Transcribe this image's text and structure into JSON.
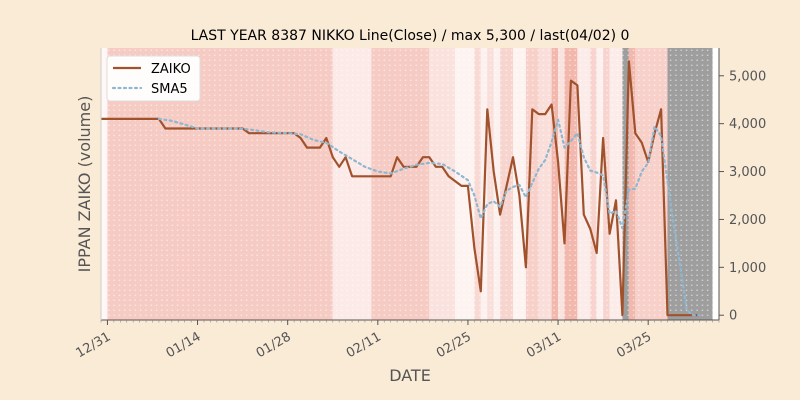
{
  "chart_data": {
    "type": "line",
    "title": "LAST YEAR 8387 NIKKO Line(Close) / max 5,300 / last(04/02) 0",
    "xlabel": "DATE",
    "ylabel": "IPPAN ZAIKO (volume)",
    "xlim": [
      "2018-12-30",
      "2019-04-05"
    ],
    "ylim": [
      -100,
      5580
    ],
    "y_axis_side": "right",
    "y_ticks": [
      0,
      1000,
      2000,
      3000,
      4000,
      5000
    ],
    "x_ticks": [
      {
        "date": "2018-12-31",
        "label": "12/31"
      },
      {
        "date": "2019-01-14",
        "label": "01/14"
      },
      {
        "date": "2019-01-28",
        "label": "01/28"
      },
      {
        "date": "2019-02-11",
        "label": "02/11"
      },
      {
        "date": "2019-02-25",
        "label": "02/25"
      },
      {
        "date": "2019-03-11",
        "label": "03/11"
      },
      {
        "date": "2019-03-25",
        "label": "03/25"
      }
    ],
    "legend_position": "top-left",
    "grid": false,
    "colors": {
      "zaiko": "#a0522d",
      "sma5": "#8fb7d0",
      "background": "#faebd7",
      "grey_band": "#9e9e9e"
    },
    "series": [
      {
        "name": "ZAIKO",
        "style": "solid",
        "points": [
          [
            "2018-12-30",
            4100
          ],
          [
            "2018-12-31",
            4100
          ],
          [
            "2019-01-01",
            4100
          ],
          [
            "2019-01-02",
            4100
          ],
          [
            "2019-01-03",
            4100
          ],
          [
            "2019-01-04",
            4100
          ],
          [
            "2019-01-05",
            4100
          ],
          [
            "2019-01-06",
            4100
          ],
          [
            "2019-01-07",
            4100
          ],
          [
            "2019-01-08",
            4100
          ],
          [
            "2019-01-09",
            3900
          ],
          [
            "2019-01-10",
            3900
          ],
          [
            "2019-01-11",
            3900
          ],
          [
            "2019-01-12",
            3900
          ],
          [
            "2019-01-13",
            3900
          ],
          [
            "2019-01-14",
            3900
          ],
          [
            "2019-01-15",
            3900
          ],
          [
            "2019-01-16",
            3900
          ],
          [
            "2019-01-17",
            3900
          ],
          [
            "2019-01-18",
            3900
          ],
          [
            "2019-01-19",
            3900
          ],
          [
            "2019-01-20",
            3900
          ],
          [
            "2019-01-21",
            3900
          ],
          [
            "2019-01-22",
            3800
          ],
          [
            "2019-01-23",
            3800
          ],
          [
            "2019-01-24",
            3800
          ],
          [
            "2019-01-25",
            3800
          ],
          [
            "2019-01-26",
            3800
          ],
          [
            "2019-01-27",
            3800
          ],
          [
            "2019-01-28",
            3800
          ],
          [
            "2019-01-29",
            3800
          ],
          [
            "2019-01-30",
            3700
          ],
          [
            "2019-01-31",
            3500
          ],
          [
            "2019-02-01",
            3500
          ],
          [
            "2019-02-02",
            3500
          ],
          [
            "2019-02-03",
            3700
          ],
          [
            "2019-02-04",
            3300
          ],
          [
            "2019-02-05",
            3100
          ],
          [
            "2019-02-06",
            3300
          ],
          [
            "2019-02-07",
            2900
          ],
          [
            "2019-02-08",
            2900
          ],
          [
            "2019-02-09",
            2900
          ],
          [
            "2019-02-10",
            2900
          ],
          [
            "2019-02-11",
            2900
          ],
          [
            "2019-02-12",
            2900
          ],
          [
            "2019-02-13",
            2900
          ],
          [
            "2019-02-14",
            3300
          ],
          [
            "2019-02-15",
            3100
          ],
          [
            "2019-02-16",
            3100
          ],
          [
            "2019-02-17",
            3100
          ],
          [
            "2019-02-18",
            3300
          ],
          [
            "2019-02-19",
            3300
          ],
          [
            "2019-02-20",
            3100
          ],
          [
            "2019-02-21",
            3100
          ],
          [
            "2019-02-22",
            2900
          ],
          [
            "2019-02-23",
            2800
          ],
          [
            "2019-02-24",
            2700
          ],
          [
            "2019-02-25",
            2700
          ],
          [
            "2019-02-26",
            1400
          ],
          [
            "2019-02-27",
            500
          ],
          [
            "2019-02-28",
            4300
          ],
          [
            "2019-03-01",
            3000
          ],
          [
            "2019-03-02",
            2100
          ],
          [
            "2019-03-03",
            2700
          ],
          [
            "2019-03-04",
            3300
          ],
          [
            "2019-03-05",
            2500
          ],
          [
            "2019-03-06",
            1000
          ],
          [
            "2019-03-07",
            4300
          ],
          [
            "2019-03-08",
            4200
          ],
          [
            "2019-03-09",
            4200
          ],
          [
            "2019-03-10",
            4400
          ],
          [
            "2019-03-11",
            3200
          ],
          [
            "2019-03-12",
            1500
          ],
          [
            "2019-03-13",
            4900
          ],
          [
            "2019-03-14",
            4800
          ],
          [
            "2019-03-15",
            2100
          ],
          [
            "2019-03-16",
            1800
          ],
          [
            "2019-03-17",
            1300
          ],
          [
            "2019-03-18",
            3700
          ],
          [
            "2019-03-19",
            1700
          ],
          [
            "2019-03-20",
            2400
          ],
          [
            "2019-03-21",
            0
          ],
          [
            "2019-03-22",
            5300
          ],
          [
            "2019-03-23",
            3800
          ],
          [
            "2019-03-24",
            3600
          ],
          [
            "2019-03-25",
            3200
          ],
          [
            "2019-03-26",
            3800
          ],
          [
            "2019-03-27",
            4300
          ],
          [
            "2019-03-28",
            0
          ],
          [
            "2019-03-29",
            0
          ],
          [
            "2019-03-30",
            0
          ],
          [
            "2019-03-31",
            0
          ],
          [
            "2019-04-01",
            0
          ],
          [
            "2019-04-02",
            0
          ]
        ]
      },
      {
        "name": "SMA5",
        "style": "dotted",
        "points": [
          [
            "2019-01-08",
            4100
          ],
          [
            "2019-01-10",
            4060
          ],
          [
            "2019-01-12",
            3980
          ],
          [
            "2019-01-14",
            3900
          ],
          [
            "2019-01-20",
            3900
          ],
          [
            "2019-01-22",
            3880
          ],
          [
            "2019-01-25",
            3820
          ],
          [
            "2019-01-28",
            3800
          ],
          [
            "2019-01-30",
            3780
          ],
          [
            "2019-02-01",
            3660
          ],
          [
            "2019-02-03",
            3600
          ],
          [
            "2019-02-05",
            3420
          ],
          [
            "2019-02-07",
            3260
          ],
          [
            "2019-02-09",
            3100
          ],
          [
            "2019-02-11",
            3000
          ],
          [
            "2019-02-13",
            2960
          ],
          [
            "2019-02-15",
            3060
          ],
          [
            "2019-02-17",
            3140
          ],
          [
            "2019-02-19",
            3180
          ],
          [
            "2019-02-21",
            3160
          ],
          [
            "2019-02-23",
            3000
          ],
          [
            "2019-02-25",
            2820
          ],
          [
            "2019-02-26",
            2500
          ],
          [
            "2019-02-27",
            2020
          ],
          [
            "2019-02-28",
            2320
          ],
          [
            "2019-03-01",
            2380
          ],
          [
            "2019-03-02",
            2260
          ],
          [
            "2019-03-03",
            2600
          ],
          [
            "2019-03-04",
            2680
          ],
          [
            "2019-03-05",
            2720
          ],
          [
            "2019-03-06",
            2460
          ],
          [
            "2019-03-07",
            2760
          ],
          [
            "2019-03-08",
            3060
          ],
          [
            "2019-03-09",
            3240
          ],
          [
            "2019-03-10",
            3620
          ],
          [
            "2019-03-11",
            4080
          ],
          [
            "2019-03-12",
            3500
          ],
          [
            "2019-03-13",
            3640
          ],
          [
            "2019-03-14",
            3800
          ],
          [
            "2019-03-15",
            3300
          ],
          [
            "2019-03-16",
            3020
          ],
          [
            "2019-03-17",
            2980
          ],
          [
            "2019-03-18",
            2920
          ],
          [
            "2019-03-19",
            2120
          ],
          [
            "2019-03-20",
            2180
          ],
          [
            "2019-03-21",
            1820
          ],
          [
            "2019-03-22",
            2620
          ],
          [
            "2019-03-23",
            2640
          ],
          [
            "2019-03-24",
            3000
          ],
          [
            "2019-03-25",
            3180
          ],
          [
            "2019-03-26",
            3940
          ],
          [
            "2019-03-27",
            3740
          ],
          [
            "2019-03-28",
            2800
          ],
          [
            "2019-03-29",
            1860
          ],
          [
            "2019-03-30",
            1000
          ],
          [
            "2019-03-31",
            100
          ],
          [
            "2019-04-01",
            0
          ],
          [
            "2019-04-02",
            0
          ]
        ]
      }
    ],
    "background_bands": [
      {
        "from": "2018-12-30",
        "to": "2018-12-31",
        "intensity": 0.08
      },
      {
        "from": "2018-12-31",
        "to": "2019-02-04",
        "intensity": 0.55
      },
      {
        "from": "2019-02-04",
        "to": "2019-02-10",
        "intensity": 0.22
      },
      {
        "from": "2019-02-10",
        "to": "2019-02-19",
        "intensity": 0.55
      },
      {
        "from": "2019-02-19",
        "to": "2019-02-23",
        "intensity": 0.3
      },
      {
        "from": "2019-02-23",
        "to": "2019-02-26",
        "intensity": 0.12
      },
      {
        "from": "2019-02-26",
        "to": "2019-02-27",
        "intensity": 0.4
      },
      {
        "from": "2019-02-27",
        "to": "2019-02-28",
        "intensity": 0.15
      },
      {
        "from": "2019-02-28",
        "to": "2019-03-01",
        "intensity": 0.35
      },
      {
        "from": "2019-03-01",
        "to": "2019-03-02",
        "intensity": 0.15
      },
      {
        "from": "2019-03-02",
        "to": "2019-03-04",
        "intensity": 0.45
      },
      {
        "from": "2019-03-04",
        "to": "2019-03-06",
        "intensity": 0.12
      },
      {
        "from": "2019-03-06",
        "to": "2019-03-08",
        "intensity": 0.5
      },
      {
        "from": "2019-03-08",
        "to": "2019-03-10",
        "intensity": 0.35
      },
      {
        "from": "2019-03-10",
        "to": "2019-03-11",
        "intensity": 0.75
      },
      {
        "from": "2019-03-11",
        "to": "2019-03-12",
        "intensity": 0.3
      },
      {
        "from": "2019-03-12",
        "to": "2019-03-14",
        "intensity": 0.75
      },
      {
        "from": "2019-03-14",
        "to": "2019-03-16",
        "intensity": 0.2
      },
      {
        "from": "2019-03-16",
        "to": "2019-03-17",
        "intensity": 0.45
      },
      {
        "from": "2019-03-17",
        "to": "2019-03-18",
        "intensity": 0.15
      },
      {
        "from": "2019-03-18",
        "to": "2019-03-19",
        "intensity": 0.45
      },
      {
        "from": "2019-03-19",
        "to": "2019-03-21",
        "intensity": 0.2
      },
      {
        "from": "2019-03-21",
        "to": "2019-03-22",
        "intensity": -1
      },
      {
        "from": "2019-03-22",
        "to": "2019-03-23",
        "intensity": 0.75
      },
      {
        "from": "2019-03-23",
        "to": "2019-03-28",
        "intensity": 0.5
      },
      {
        "from": "2019-03-28",
        "to": "2019-04-04",
        "intensity": -1
      }
    ]
  }
}
